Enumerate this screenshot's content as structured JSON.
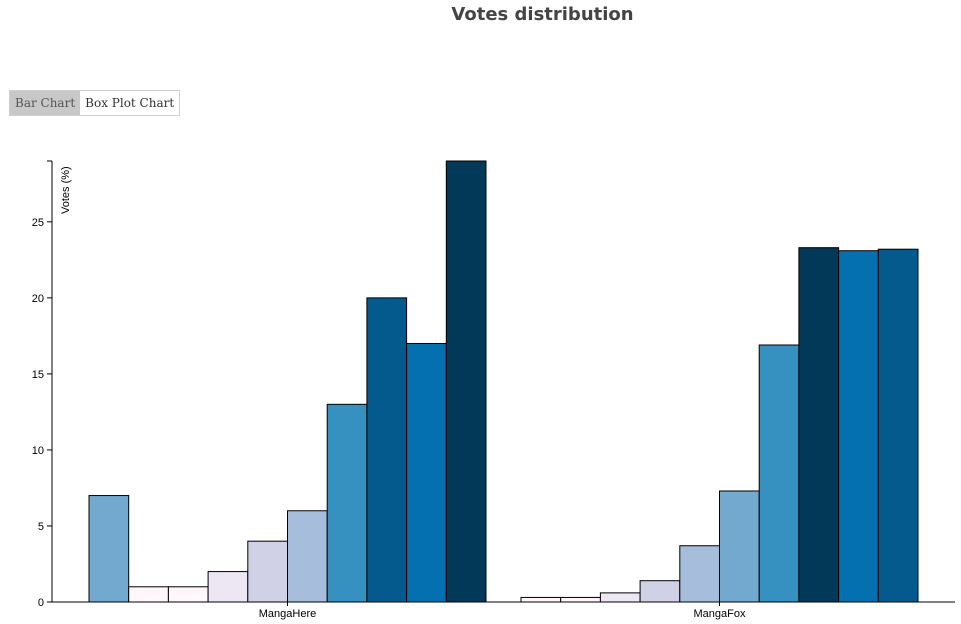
{
  "header": {
    "title": "Votes distribution"
  },
  "tabs": [
    {
      "label": "Bar Chart",
      "active": true
    },
    {
      "label": "Box Plot Chart",
      "active": false
    }
  ],
  "chart_data": {
    "type": "bar",
    "title": "Votes distribution",
    "xlabel": "",
    "ylabel": "Votes (%)",
    "ylim": [
      0,
      29
    ],
    "yticks": [
      0,
      5,
      10,
      15,
      20,
      25
    ],
    "categories": [
      "MangaHere",
      "MangaFox"
    ],
    "grid": false,
    "legend": "none",
    "groups": [
      {
        "name": "MangaHere",
        "values": [
          7,
          1,
          1,
          2,
          4,
          6,
          13,
          20,
          17,
          29
        ],
        "colors": [
          "#74a9cf",
          "#fff7fb",
          "#fff7fb",
          "#ece7f2",
          "#d0d1e6",
          "#a6bddb",
          "#3690c0",
          "#045a8d",
          "#0570b0",
          "#023858"
        ]
      },
      {
        "name": "MangaFox",
        "values": [
          0.3,
          0.3,
          0.6,
          1.4,
          3.7,
          7.3,
          16.9,
          23.3,
          23.1,
          23.2
        ],
        "colors": [
          "#fff7fb",
          "#fff7fb",
          "#ece7f2",
          "#d0d1e6",
          "#a6bddb",
          "#74a9cf",
          "#3690c0",
          "#023858",
          "#0570b0",
          "#045a8d"
        ]
      }
    ]
  }
}
